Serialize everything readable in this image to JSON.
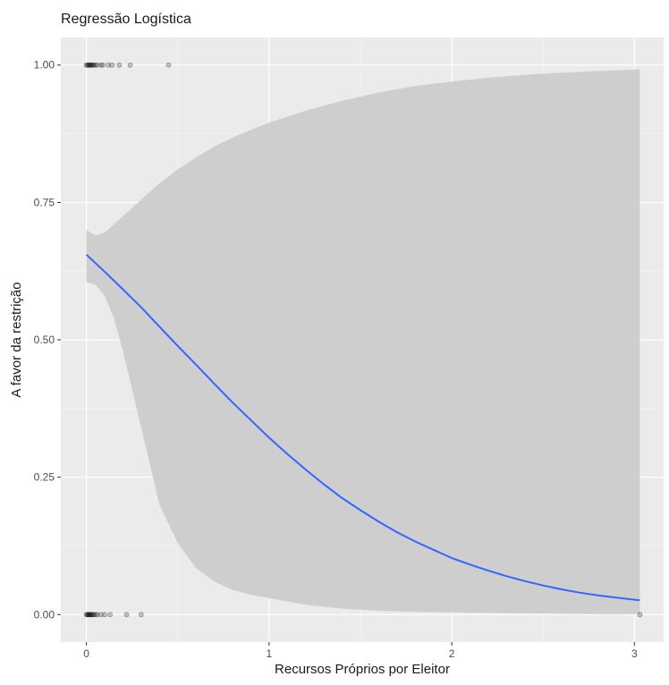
{
  "chart_data": {
    "type": "line",
    "title": "Regressão Logística",
    "xlabel": "Recursos Próprios por Eleitor",
    "ylabel": "A favor da restrição",
    "xlim": [
      -0.14,
      3.16
    ],
    "ylim": [
      -0.05,
      1.05
    ],
    "x_ticks": [
      0,
      1,
      2,
      3
    ],
    "x_tick_labels": [
      "0",
      "1",
      "2",
      "3"
    ],
    "y_ticks": [
      0,
      0.25,
      0.5,
      0.75,
      1
    ],
    "y_tick_labels": [
      "0.00",
      "0.25",
      "0.50",
      "0.75",
      "1.00"
    ],
    "grid": true,
    "colors": {
      "panel_background": "#ebebeb",
      "grid_major": "#ffffff",
      "confidence_band": "#cccccc",
      "fit_line": "#3366ff",
      "points": "#000000"
    },
    "fit_line": {
      "x": [
        0,
        0.1,
        0.2,
        0.3,
        0.4,
        0.5,
        0.6,
        0.7,
        0.8,
        0.9,
        1.0,
        1.1,
        1.2,
        1.3,
        1.4,
        1.5,
        1.6,
        1.7,
        1.8,
        1.9,
        2.0,
        2.1,
        2.2,
        2.3,
        2.4,
        2.5,
        2.6,
        2.7,
        2.8,
        2.9,
        3.03
      ],
      "y": [
        0.655,
        0.624,
        0.592,
        0.559,
        0.524,
        0.489,
        0.455,
        0.42,
        0.386,
        0.354,
        0.322,
        0.292,
        0.264,
        0.237,
        0.212,
        0.19,
        0.169,
        0.15,
        0.133,
        0.118,
        0.103,
        0.091,
        0.08,
        0.07,
        0.061,
        0.053,
        0.046,
        0.04,
        0.035,
        0.031,
        0.026
      ]
    },
    "confidence_band": {
      "x": [
        0,
        0.05,
        0.1,
        0.15,
        0.2,
        0.3,
        0.4,
        0.5,
        0.6,
        0.7,
        0.8,
        0.9,
        1.0,
        1.2,
        1.4,
        1.6,
        1.8,
        2.0,
        2.2,
        2.4,
        2.6,
        2.8,
        3.03
      ],
      "lower": [
        0.605,
        0.6,
        0.58,
        0.54,
        0.48,
        0.34,
        0.2,
        0.13,
        0.085,
        0.06,
        0.045,
        0.036,
        0.03,
        0.018,
        0.011,
        0.007,
        0.005,
        0.004,
        0.003,
        0.002,
        0.0015,
        0.001,
        0.0008
      ],
      "upper": [
        0.7,
        0.69,
        0.695,
        0.71,
        0.725,
        0.755,
        0.785,
        0.81,
        0.832,
        0.852,
        0.868,
        0.882,
        0.895,
        0.917,
        0.935,
        0.95,
        0.962,
        0.97,
        0.977,
        0.982,
        0.986,
        0.989,
        0.992
      ]
    },
    "points": {
      "y1": [
        0.0,
        0.005,
        0.01,
        0.015,
        0.02,
        0.025,
        0.03,
        0.035,
        0.04,
        0.05,
        0.06,
        0.08,
        0.09,
        0.12,
        0.14,
        0.18,
        0.24,
        0.45
      ],
      "y0": [
        0.0,
        0.004,
        0.008,
        0.012,
        0.016,
        0.02,
        0.025,
        0.03,
        0.035,
        0.04,
        0.05,
        0.06,
        0.08,
        0.1,
        0.13,
        0.22,
        0.3,
        3.03
      ]
    }
  }
}
